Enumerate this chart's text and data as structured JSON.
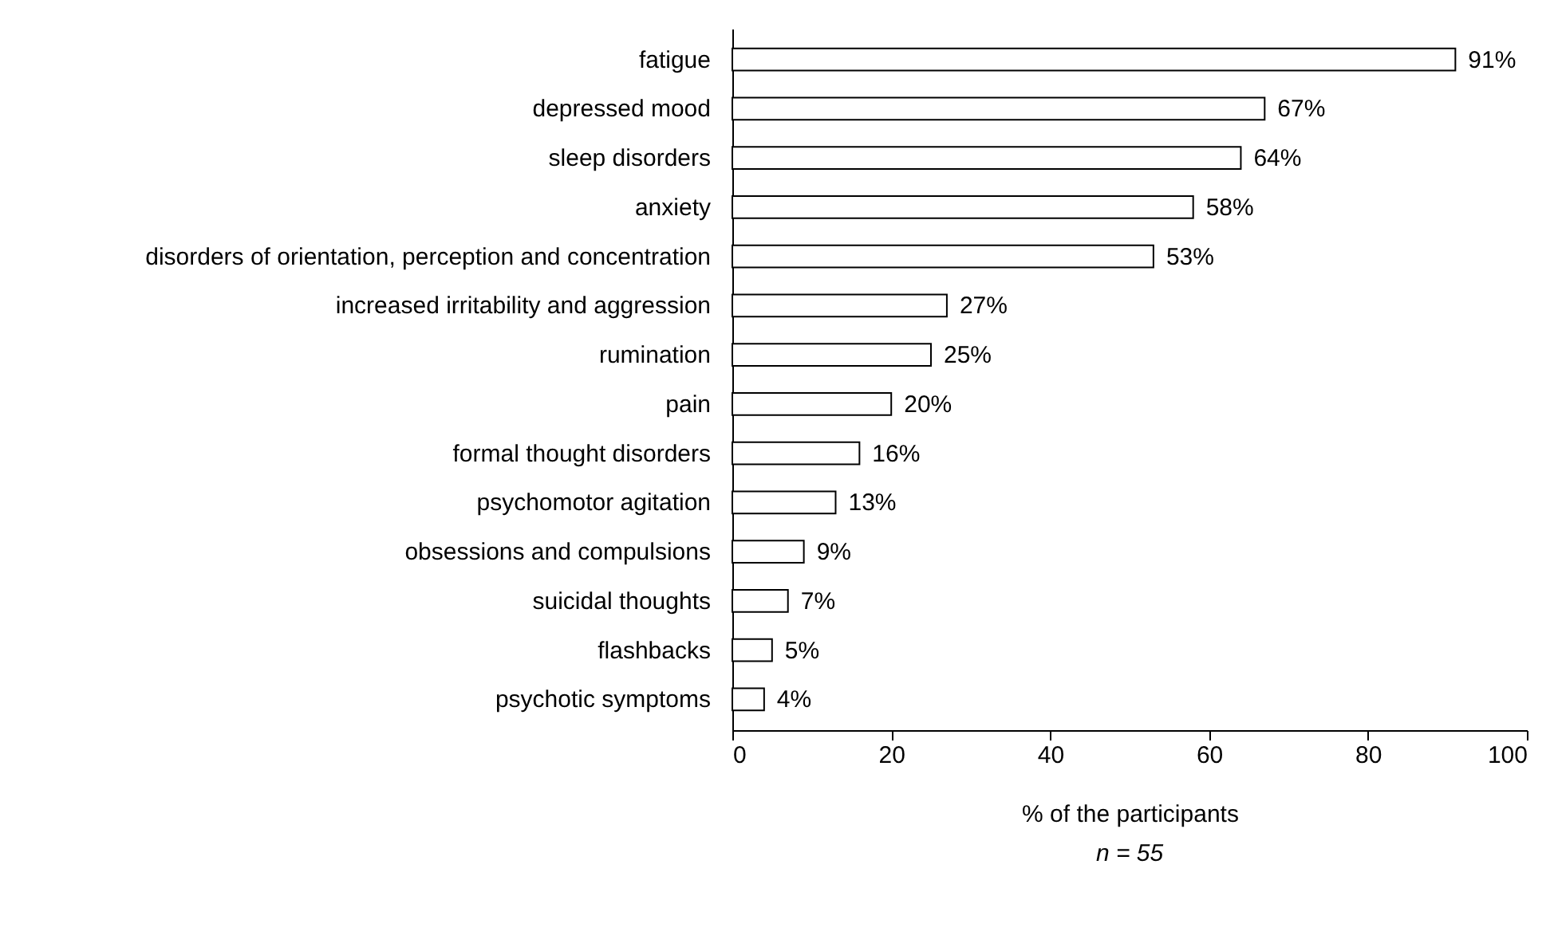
{
  "chart_data": {
    "type": "bar",
    "orientation": "horizontal",
    "xlabel": "% of the participants",
    "annotations": [
      "n = 55"
    ],
    "categories": [
      "fatigue",
      "depressed mood",
      "sleep disorders",
      "anxiety",
      "disorders of orientation, perception and concentration",
      "increased irritability and aggression",
      "rumination",
      "pain",
      "formal thought disorders",
      "psychomotor agitation",
      "obsessions and compulsions",
      "suicidal thoughts",
      "flashbacks",
      "psychotic symptoms"
    ],
    "values": [
      91,
      67,
      64,
      58,
      53,
      27,
      25,
      20,
      16,
      13,
      9,
      7,
      5,
      4
    ],
    "value_labels": [
      "91%",
      "67%",
      "64%",
      "58%",
      "53%",
      "27%",
      "25%",
      "20%",
      "16%",
      "13%",
      "9%",
      "7%",
      "5%",
      "4%"
    ],
    "color": "#ffffff",
    "xlim": [
      0,
      100
    ],
    "xticks": [
      0,
      20,
      40,
      60,
      80,
      100
    ],
    "grid": false
  }
}
